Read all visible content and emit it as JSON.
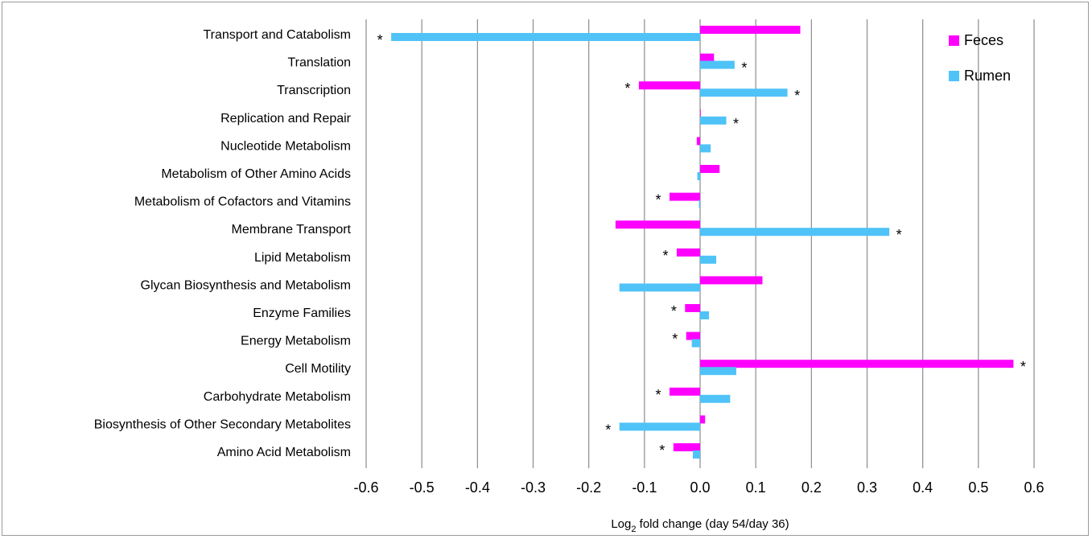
{
  "chart_data": {
    "type": "bar",
    "orientation": "horizontal",
    "categories": [
      "Transport and Catabolism",
      "Translation",
      "Transcription",
      "Replication and Repair",
      "Nucleotide Metabolism",
      "Metabolism of Other Amino Acids",
      "Metabolism of Cofactors and Vitamins",
      "Membrane Transport",
      "Lipid Metabolism",
      "Glycan Biosynthesis and Metabolism",
      "Enzyme Families",
      "Energy Metabolism",
      "Cell Motility",
      "Carbohydrate Metabolism",
      "Biosynthesis of Other Secondary Metabolites",
      "Amino Acid Metabolism"
    ],
    "series": [
      {
        "name": "Feces",
        "color": "#ff00ff",
        "values": [
          0.18,
          0.025,
          -0.11,
          0.0,
          -0.006,
          0.035,
          -0.055,
          -0.152,
          -0.042,
          0.112,
          -0.027,
          -0.025,
          0.563,
          -0.055,
          0.009,
          -0.048
        ],
        "significant": [
          false,
          false,
          true,
          false,
          false,
          false,
          true,
          false,
          true,
          false,
          true,
          true,
          true,
          true,
          false,
          true
        ]
      },
      {
        "name": "Rumen",
        "color": "#4fc3f7",
        "values": [
          -0.555,
          0.062,
          0.157,
          0.047,
          0.019,
          -0.005,
          -0.002,
          0.34,
          0.029,
          -0.145,
          0.016,
          -0.015,
          0.065,
          0.054,
          -0.145,
          -0.013
        ],
        "significant": [
          true,
          true,
          true,
          true,
          false,
          false,
          false,
          true,
          false,
          false,
          false,
          false,
          false,
          false,
          true,
          false
        ]
      }
    ],
    "significance_marker": "*",
    "xlim": [
      -0.6,
      0.6
    ],
    "xticks": [
      "-0.6",
      "-0.5",
      "-0.4",
      "-0.3",
      "-0.2",
      "-0.1",
      "0.0",
      "0.1",
      "0.2",
      "0.3",
      "0.4",
      "0.5",
      "0.6"
    ],
    "xlabel_prefix": "Log",
    "xlabel_subscript": "2",
    "xlabel_suffix": " fold change (day 54/day 36)",
    "grid": "vertical",
    "legend_position": "top-right"
  }
}
